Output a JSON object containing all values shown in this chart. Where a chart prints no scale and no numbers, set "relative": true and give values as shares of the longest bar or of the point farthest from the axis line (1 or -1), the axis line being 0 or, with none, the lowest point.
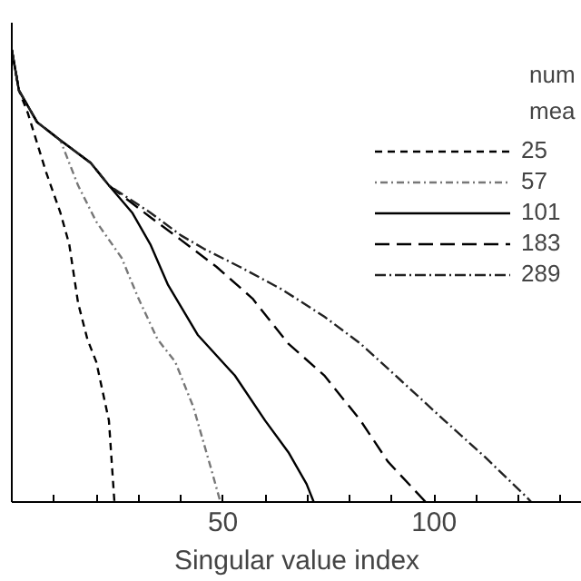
{
  "chart_data": {
    "type": "line",
    "relative": true,
    "xlabel": "Singular value index",
    "legend_title": "num\nmea",
    "legend": "top right",
    "grid": false,
    "xlim": [
      0,
      135
    ],
    "xticks": [
      {
        "value": 10,
        "label": null
      },
      {
        "value": 20,
        "label": null
      },
      {
        "value": 30,
        "label": null
      },
      {
        "value": 40,
        "label": null
      },
      50,
      {
        "value": 60,
        "label": null
      },
      {
        "value": 70,
        "label": null
      },
      {
        "value": 80,
        "label": null
      },
      {
        "value": 90,
        "label": null
      },
      100,
      {
        "value": 110,
        "label": null
      },
      {
        "value": 120,
        "label": null
      },
      {
        "value": 130,
        "label": null
      }
    ],
    "series": [
      {
        "name": "25",
        "color": "#000000",
        "line_style": "dashed",
        "x": [
          0,
          1.7,
          3.8,
          8.1,
          11.5,
          13.6,
          15.7,
          17.9,
          20,
          23,
          24.3
        ],
        "values": [
          1.0,
          0.91,
          0.86,
          0.73,
          0.64,
          0.57,
          0.44,
          0.36,
          0.31,
          0.18,
          0
        ]
      },
      {
        "name": "57",
        "color": "#777777",
        "line_style": "dotdash",
        "x": [
          0,
          1.7,
          6,
          11.5,
          15.7,
          20,
          26,
          30,
          34.5,
          38.7,
          43,
          47,
          49.4
        ],
        "values": [
          1.0,
          0.91,
          0.84,
          0.8,
          0.7,
          0.62,
          0.54,
          0.45,
          0.36,
          0.31,
          0.21,
          0.08,
          0
        ]
      },
      {
        "name": "101",
        "color": "#000000",
        "line_style": "solid",
        "x": [
          0,
          1.7,
          6,
          11.5,
          18.7,
          23,
          28.5,
          32.8,
          37,
          44,
          52.8,
          60,
          65.5,
          69.8,
          71.5
        ],
        "values": [
          1.0,
          0.91,
          0.84,
          0.8,
          0.75,
          0.7,
          0.64,
          0.57,
          0.48,
          0.37,
          0.28,
          0.18,
          0.11,
          0.04,
          0
        ]
      },
      {
        "name": "183",
        "color": "#000000",
        "line_style": "dashed_long",
        "x": [
          0,
          1.7,
          6,
          11.5,
          18.7,
          23,
          32.8,
          40,
          48.5,
          57,
          65.5,
          74,
          82.6,
          89,
          98
        ],
        "values": [
          1.0,
          0.91,
          0.84,
          0.8,
          0.75,
          0.7,
          0.63,
          0.58,
          0.52,
          0.45,
          0.35,
          0.28,
          0.18,
          0.09,
          0
        ]
      },
      {
        "name": "289",
        "color": "#222222",
        "line_style": "dashdot",
        "x": [
          0,
          1.7,
          6,
          11.5,
          18.7,
          23,
          32.8,
          40,
          45.5,
          54,
          64,
          74,
          82.6,
          92,
          102.5,
          112,
          122,
          123
        ],
        "values": [
          1.0,
          0.91,
          0.84,
          0.8,
          0.75,
          0.7,
          0.64,
          0.59,
          0.56,
          0.52,
          0.47,
          0.41,
          0.35,
          0.27,
          0.18,
          0.1,
          0.01,
          0
        ]
      }
    ]
  }
}
